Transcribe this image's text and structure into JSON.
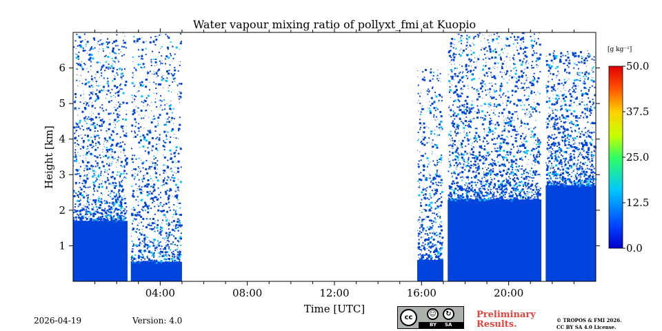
{
  "chart_data": {
    "type": "heatmap",
    "title": "Water vapour mixing ratio of pollyxt_fmi at Kuopio",
    "xlabel": "Time [UTC]",
    "ylabel": "Height [km]",
    "x_unit": "hours",
    "xlim": [
      0,
      24
    ],
    "ylim": [
      0,
      7
    ],
    "x_ticks": [
      4,
      8,
      12,
      16,
      20
    ],
    "x_tick_labels": [
      "04:00",
      "08:00",
      "12:00",
      "16:00",
      "20:00"
    ],
    "y_ticks": [
      1,
      2,
      3,
      4,
      5,
      6
    ],
    "y_tick_labels": [
      "1",
      "2",
      "3",
      "4",
      "5",
      "6"
    ],
    "colorbar": {
      "unit": "[g kg⁻¹]",
      "min": 0,
      "max": 50,
      "ticks": [
        0,
        12.5,
        25,
        37.5,
        50
      ],
      "tick_labels": [
        "0.0",
        "12.5",
        "25.0",
        "37.5",
        "50.0"
      ],
      "colormap": "jet"
    },
    "colors": {
      "low_value": "#0044dd",
      "mid_value": "#00c8ff"
    },
    "data_segments": [
      {
        "start": 0.0,
        "end": 2.5,
        "dense_top_km": 1.7,
        "sparse_top_km": 7.0
      },
      {
        "start": 2.65,
        "end": 5.0,
        "dense_top_km": 0.55,
        "sparse_top_km": 7.0
      },
      {
        "start": 15.8,
        "end": 17.0,
        "dense_top_km": 0.6,
        "sparse_top_km": 6.0
      },
      {
        "start": 17.2,
        "end": 21.5,
        "dense_top_km": 2.3,
        "sparse_top_km": 7.0
      },
      {
        "start": 21.7,
        "end": 24.0,
        "dense_top_km": 2.7,
        "sparse_top_km": 6.5
      }
    ],
    "gaps_no_data": [
      [
        2.5,
        2.65
      ],
      [
        5.0,
        15.8
      ],
      [
        17.0,
        17.2
      ],
      [
        21.5,
        21.7
      ]
    ]
  },
  "footer": {
    "date": "2026-04-19",
    "version": "Version: 4.0",
    "preliminary_line1": "Preliminary",
    "preliminary_line2": "Results.",
    "copyright_line1": "© TROPOS & FMI 2026.",
    "copyright_line2": "CC BY SA 4.0 License."
  },
  "license_badge": {
    "cc": "cc",
    "by": "BY",
    "sa": "SA"
  }
}
